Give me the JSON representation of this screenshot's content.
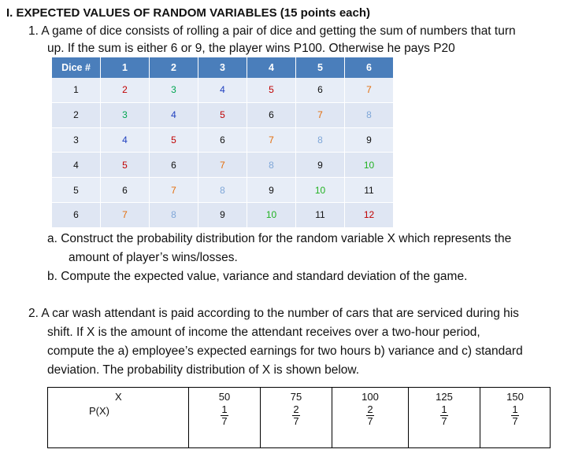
{
  "heading": "I.  EXPECTED VALUES OF RANDOM VARIABLES  (15 points each)",
  "problem1": {
    "line1": "1.   A game of dice consists of rolling a pair of dice and getting the sum of numbers that turn",
    "line2": "up.  If the sum is either 6 or 9, the player wins P100.  Otherwise he pays P20",
    "table": {
      "corner": "Dice #",
      "col_headers": [
        "1",
        "2",
        "3",
        "4",
        "5",
        "6"
      ],
      "rows": [
        {
          "label": "1",
          "cells": [
            "2",
            "3",
            "4",
            "5",
            "6",
            "7"
          ]
        },
        {
          "label": "2",
          "cells": [
            "3",
            "4",
            "5",
            "6",
            "7",
            "8"
          ]
        },
        {
          "label": "3",
          "cells": [
            "4",
            "5",
            "6",
            "7",
            "8",
            "9"
          ]
        },
        {
          "label": "4",
          "cells": [
            "5",
            "6",
            "7",
            "8",
            "9",
            "10"
          ]
        },
        {
          "label": "5",
          "cells": [
            "6",
            "7",
            "8",
            "9",
            "10",
            "11"
          ]
        },
        {
          "label": "6",
          "cells": [
            "7",
            "8",
            "9",
            "10",
            "11",
            "12"
          ]
        }
      ],
      "sum_colors": {
        "2": "#c00000",
        "3": "#00a650",
        "4": "#1f3fbf",
        "5": "#c00000",
        "6": "#111111",
        "7": "#e36c09",
        "8": "#7fa7d8",
        "9": "#111111",
        "10": "#22b222",
        "11": "#111111",
        "12": "#c00000"
      }
    },
    "a_line1": "a.     Construct the probability distribution for the random variable X which represents the",
    "a_line2": "amount of player’s wins/losses.",
    "b_line": "b.  Compute the expected value, variance and standard deviation of the game."
  },
  "problem2": {
    "line1": "2.   A car wash attendant is paid according to the number of cars that are serviced during his",
    "line2": "shift.  If X is the amount of income the attendant receives over a two-hour period,",
    "line3": "compute the a) employee’s expected earnings for two hours b) variance and c) standard",
    "line4": "deviation.  The probability distribution of X is shown below.",
    "table": {
      "x_label": "X",
      "p_label": "P(X)",
      "x_values": [
        "50",
        "75",
        "100",
        "125",
        "150"
      ],
      "p_values": [
        {
          "num": "1",
          "den": "7"
        },
        {
          "num": "2",
          "den": "7"
        },
        {
          "num": "2",
          "den": "7"
        },
        {
          "num": "1",
          "den": "7"
        },
        {
          "num": "1",
          "den": "7"
        }
      ]
    }
  }
}
